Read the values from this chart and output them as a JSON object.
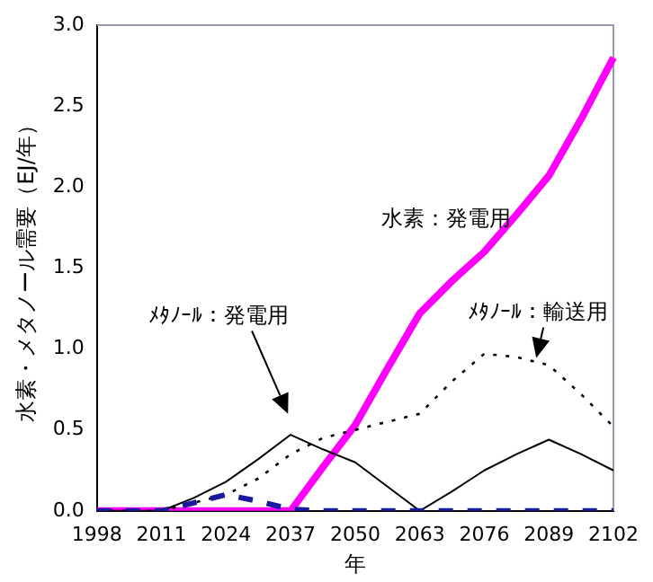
{
  "chart_data": {
    "type": "line",
    "xlabel": "年",
    "ylabel": "水素・メタノール需要（EJ/年）",
    "categories": [
      "1998",
      null,
      "2011",
      null,
      "2024",
      null,
      "2037",
      null,
      "2050",
      null,
      "2063",
      null,
      "2076",
      null,
      "2089",
      null,
      "2102"
    ],
    "series": [
      {
        "name": "水素：発電用",
        "color": "#ff00ff",
        "line_style": "solid",
        "values": [
          0,
          0,
          0,
          0,
          0,
          0,
          0,
          0.27,
          0.53,
          0.88,
          1.22,
          1.42,
          1.6,
          1.83,
          2.07,
          2.42,
          2.8
        ]
      },
      {
        "color": "#000000",
        "line_style": "solid",
        "values": [
          0,
          0,
          0,
          0.08,
          0.18,
          0.32,
          0.47,
          0.38,
          0.3,
          0.15,
          0,
          0.12,
          0.25,
          0.35,
          0.44,
          0.35,
          0.25
        ]
      },
      {
        "color": "#000000",
        "line_style": "dotted",
        "values": [
          0,
          0,
          0,
          0.05,
          0.1,
          0.2,
          0.35,
          0.45,
          0.5,
          0.55,
          0.6,
          0.8,
          0.97,
          0.95,
          0.9,
          0.72,
          0.52
        ]
      },
      {
        "color": "#1a1aa0",
        "line_style": "dashed",
        "values": [
          0,
          0,
          0,
          0.05,
          0.1,
          0.06,
          0.01,
          0,
          0,
          0,
          0,
          0,
          0,
          0,
          0,
          0,
          0
        ]
      }
    ],
    "ylim": [
      0,
      3
    ],
    "yticks": [
      {
        "value": 0,
        "label": "0.0"
      },
      {
        "value": 0.5,
        "label": "0.5"
      },
      {
        "value": 1,
        "label": "1.0"
      },
      {
        "value": 1.5,
        "label": "1.5"
      },
      {
        "value": 2,
        "label": "2.0"
      },
      {
        "value": 2.5,
        "label": "2.5"
      },
      {
        "value": 3,
        "label": "3.0"
      }
    ],
    "annotations": [
      "ﾒﾀﾉｰﾙ：発電用",
      {
        "text": "ﾒﾀﾉｰﾙ：輸送用",
        "x": "2089",
        "y": 0.9
      }
    ],
    "grid": false,
    "legend": false,
    "marker": "none"
  }
}
